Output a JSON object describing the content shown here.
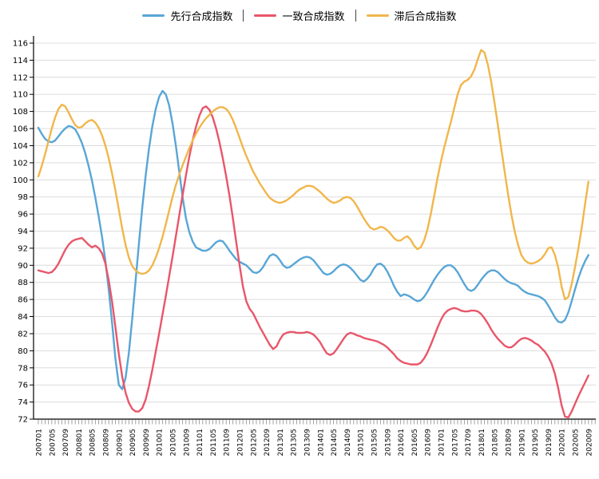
{
  "legend": {
    "items": [
      {
        "label": "先行合成指数",
        "color": "#58A6D6"
      },
      {
        "label": "一致合成指数",
        "color": "#E8566A"
      },
      {
        "label": "滞后合成指数",
        "color": "#F1B64B"
      }
    ]
  },
  "chart_data": {
    "type": "line",
    "title": "",
    "xlabel": "",
    "ylabel": "",
    "ylim": [
      72,
      116
    ],
    "y_tick_step": 2,
    "y_tick_labels": [
      "72",
      "74",
      "76",
      "78",
      "80",
      "82",
      "84",
      "86",
      "88",
      "90",
      "92",
      "94",
      "96",
      "98",
      "100",
      "102",
      "104",
      "106",
      "108",
      "110",
      "112",
      "114",
      "116"
    ],
    "grid": "horizontal-gray",
    "legend_position": "top-center",
    "x_start": "200701",
    "x_end": "202009",
    "x_minor_tick": "monthly",
    "x_label_every_n_months": 4,
    "x_tick_labels": [
      "200701",
      "200705",
      "200709",
      "200801",
      "200805",
      "200809",
      "200901",
      "200905",
      "200909",
      "201001",
      "201005",
      "201009",
      "201101",
      "201105",
      "201109",
      "201201",
      "201205",
      "201209",
      "201301",
      "201305",
      "201309",
      "201401",
      "201405",
      "201409",
      "201501",
      "201505",
      "201509",
      "201601",
      "201605",
      "201609",
      "201701",
      "201705",
      "201709",
      "201801",
      "201805",
      "201809",
      "201901",
      "201905",
      "201909",
      "202001",
      "202005",
      "202009"
    ],
    "series": [
      {
        "name": "先行合成指数",
        "color": "#58A6D6",
        "values": [
          106.1,
          105.4,
          104.8,
          104.5,
          104.4,
          104.6,
          105.1,
          105.6,
          106.0,
          106.3,
          106.2,
          105.9,
          105.2,
          104.3,
          103.1,
          101.6,
          99.9,
          97.9,
          95.7,
          93.3,
          90.5,
          87.1,
          83.2,
          79.0,
          76.0,
          75.5,
          76.8,
          79.8,
          83.8,
          88.2,
          92.6,
          96.8,
          100.5,
          103.7,
          106.3,
          108.3,
          109.7,
          110.4,
          110.0,
          108.7,
          106.6,
          104.0,
          101.0,
          98.0,
          95.5,
          93.9,
          92.8,
          92.1,
          91.9,
          91.7,
          91.7,
          91.9,
          92.3,
          92.7,
          92.9,
          92.8,
          92.3,
          91.7,
          91.2,
          90.7,
          90.4,
          90.2,
          90.0,
          89.6,
          89.2,
          89.1,
          89.3,
          89.8,
          90.5,
          91.1,
          91.3,
          91.1,
          90.6,
          90.0,
          89.7,
          89.8,
          90.1,
          90.4,
          90.7,
          90.9,
          91.0,
          90.9,
          90.6,
          90.1,
          89.6,
          89.1,
          88.9,
          89.0,
          89.3,
          89.7,
          90.0,
          90.1,
          90.0,
          89.7,
          89.3,
          88.8,
          88.3,
          88.1,
          88.4,
          88.9,
          89.6,
          90.1,
          90.2,
          89.9,
          89.3,
          88.5,
          87.6,
          86.9,
          86.4,
          86.6,
          86.5,
          86.3,
          86.0,
          85.8,
          85.9,
          86.3,
          86.9,
          87.6,
          88.3,
          88.9,
          89.4,
          89.8,
          90.0,
          90.0,
          89.7,
          89.2,
          88.5,
          87.8,
          87.2,
          87.0,
          87.2,
          87.7,
          88.3,
          88.8,
          89.2,
          89.4,
          89.4,
          89.2,
          88.8,
          88.4,
          88.1,
          87.9,
          87.8,
          87.6,
          87.2,
          86.9,
          86.7,
          86.6,
          86.5,
          86.4,
          86.2,
          85.9,
          85.3,
          84.6,
          83.9,
          83.4,
          83.3,
          83.6,
          84.5,
          85.8,
          87.2,
          88.5,
          89.6,
          90.5,
          91.2
        ]
      },
      {
        "name": "一致合成指数",
        "color": "#E8566A",
        "values": [
          89.4,
          89.3,
          89.2,
          89.1,
          89.2,
          89.6,
          90.2,
          91.0,
          91.8,
          92.4,
          92.8,
          93.0,
          93.1,
          93.2,
          92.8,
          92.4,
          92.1,
          92.3,
          92.0,
          91.4,
          90.2,
          88.2,
          85.7,
          82.7,
          79.6,
          77.0,
          75.1,
          73.9,
          73.2,
          72.9,
          72.9,
          73.3,
          74.3,
          75.9,
          77.8,
          79.9,
          82.0,
          84.2,
          86.4,
          88.7,
          91.0,
          93.4,
          95.8,
          98.2,
          100.5,
          102.7,
          104.6,
          106.2,
          107.5,
          108.4,
          108.6,
          108.2,
          107.3,
          106.0,
          104.4,
          102.5,
          100.4,
          98.1,
          95.5,
          92.7,
          90.0,
          87.5,
          85.8,
          84.9,
          84.4,
          83.6,
          82.8,
          82.1,
          81.4,
          80.7,
          80.2,
          80.5,
          81.3,
          81.9,
          82.1,
          82.2,
          82.2,
          82.1,
          82.1,
          82.1,
          82.2,
          82.1,
          81.9,
          81.5,
          81.0,
          80.3,
          79.7,
          79.5,
          79.7,
          80.2,
          80.8,
          81.4,
          81.9,
          82.1,
          82.0,
          81.8,
          81.7,
          81.5,
          81.4,
          81.3,
          81.2,
          81.1,
          80.9,
          80.7,
          80.4,
          80.0,
          79.6,
          79.1,
          78.8,
          78.6,
          78.5,
          78.4,
          78.4,
          78.4,
          78.6,
          79.1,
          79.8,
          80.7,
          81.7,
          82.7,
          83.6,
          84.3,
          84.7,
          84.9,
          85.0,
          84.9,
          84.7,
          84.6,
          84.6,
          84.7,
          84.7,
          84.6,
          84.3,
          83.8,
          83.2,
          82.5,
          81.9,
          81.4,
          81.0,
          80.6,
          80.4,
          80.4,
          80.7,
          81.1,
          81.4,
          81.5,
          81.4,
          81.2,
          80.9,
          80.7,
          80.3,
          79.9,
          79.3,
          78.5,
          77.3,
          75.6,
          73.6,
          72.3,
          72.2,
          72.9,
          73.8,
          74.7,
          75.5,
          76.3,
          77.1
        ]
      },
      {
        "name": "滞后合成指数",
        "color": "#F1B64B",
        "values": [
          100.4,
          101.6,
          103.0,
          104.5,
          106.0,
          107.3,
          108.3,
          108.8,
          108.6,
          107.9,
          107.1,
          106.4,
          106.1,
          106.2,
          106.6,
          106.9,
          107.0,
          106.7,
          106.1,
          105.2,
          104.0,
          102.5,
          100.7,
          98.7,
          96.5,
          94.3,
          92.4,
          90.9,
          89.9,
          89.4,
          89.1,
          89.0,
          89.1,
          89.4,
          90.0,
          90.9,
          92.0,
          93.3,
          94.8,
          96.4,
          98.0,
          99.4,
          100.6,
          101.7,
          102.7,
          103.7,
          104.6,
          105.4,
          106.1,
          106.7,
          107.2,
          107.6,
          108.0,
          108.3,
          108.5,
          108.5,
          108.3,
          107.8,
          107.0,
          106.0,
          104.9,
          103.8,
          102.8,
          101.9,
          101.0,
          100.3,
          99.6,
          99.0,
          98.4,
          97.9,
          97.6,
          97.4,
          97.3,
          97.4,
          97.6,
          97.9,
          98.2,
          98.6,
          98.9,
          99.1,
          99.3,
          99.3,
          99.2,
          98.9,
          98.6,
          98.2,
          97.8,
          97.5,
          97.3,
          97.4,
          97.6,
          97.9,
          98.0,
          97.9,
          97.5,
          96.9,
          96.2,
          95.5,
          94.9,
          94.4,
          94.2,
          94.3,
          94.5,
          94.4,
          94.1,
          93.7,
          93.2,
          92.9,
          92.9,
          93.2,
          93.4,
          93.0,
          92.3,
          91.9,
          92.1,
          92.9,
          94.2,
          96.0,
          98.1,
          100.2,
          102.1,
          103.8,
          105.3,
          106.8,
          108.4,
          110.0,
          111.1,
          111.5,
          111.7,
          112.1,
          112.9,
          114.1,
          115.2,
          114.9,
          113.5,
          111.5,
          109.0,
          106.4,
          103.7,
          101.0,
          98.4,
          96.0,
          94.0,
          92.4,
          91.2,
          90.6,
          90.3,
          90.2,
          90.3,
          90.5,
          90.8,
          91.3,
          92.0,
          92.1,
          91.2,
          89.7,
          87.5,
          86.0,
          86.3,
          87.8,
          89.8,
          92.0,
          94.4,
          97.2,
          99.8
        ]
      }
    ]
  },
  "colors": {
    "grid": "#dcdcdc",
    "axis": "#000000",
    "minor_tick": "#999999",
    "background": "#ffffff"
  }
}
